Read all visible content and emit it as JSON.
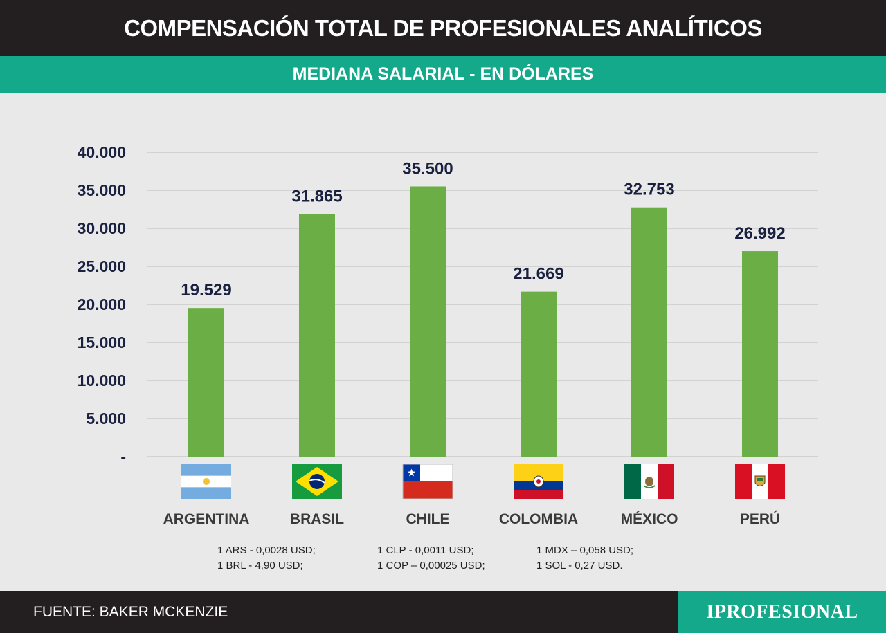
{
  "title": "COMPENSACIÓN TOTAL DE PROFESIONALES ANALÍTICOS",
  "subtitle": "MEDIANA SALARIAL - EN DÓLARES",
  "chart_data": {
    "type": "bar",
    "categories": [
      "ARGENTINA",
      "BRASIL",
      "CHILE",
      "COLOMBIA",
      "MÉXICO",
      "PERÚ"
    ],
    "values": [
      19529,
      31865,
      35500,
      21669,
      32753,
      26992
    ],
    "value_labels": [
      "19.529",
      "31.865",
      "35.500",
      "21.669",
      "32.753",
      "26.992"
    ],
    "yticks": [
      0,
      5000,
      10000,
      15000,
      20000,
      25000,
      30000,
      35000,
      40000
    ],
    "ytick_labels": [
      "-",
      "5.000",
      "10.000",
      "15.000",
      "20.000",
      "25.000",
      "30.000",
      "35.000",
      "40.000"
    ],
    "ylim": [
      0,
      40000
    ],
    "grid": true,
    "bar_color": "#6aae45",
    "flag_icons": [
      "argentina-flag-icon",
      "brazil-flag-icon",
      "chile-flag-icon",
      "colombia-flag-icon",
      "mexico-flag-icon",
      "peru-flag-icon"
    ]
  },
  "notes": {
    "col1": [
      "1 ARS - 0,0028 USD;",
      "1 BRL - 4,90 USD;"
    ],
    "col2": [
      "1 CLP - 0,0011 USD;",
      "1 COP – 0,00025 USD;"
    ],
    "col3": [
      "1 MDX – 0,058 USD;",
      "1 SOL - 0,27 USD."
    ]
  },
  "footer": {
    "source": "FUENTE: BAKER MCKENZIE",
    "logo": "IPROFESIONAL"
  },
  "colors": {
    "dark": "#231f20",
    "teal": "#14a98a",
    "background": "#e8e9e8",
    "label_navy": "#1a2140"
  }
}
